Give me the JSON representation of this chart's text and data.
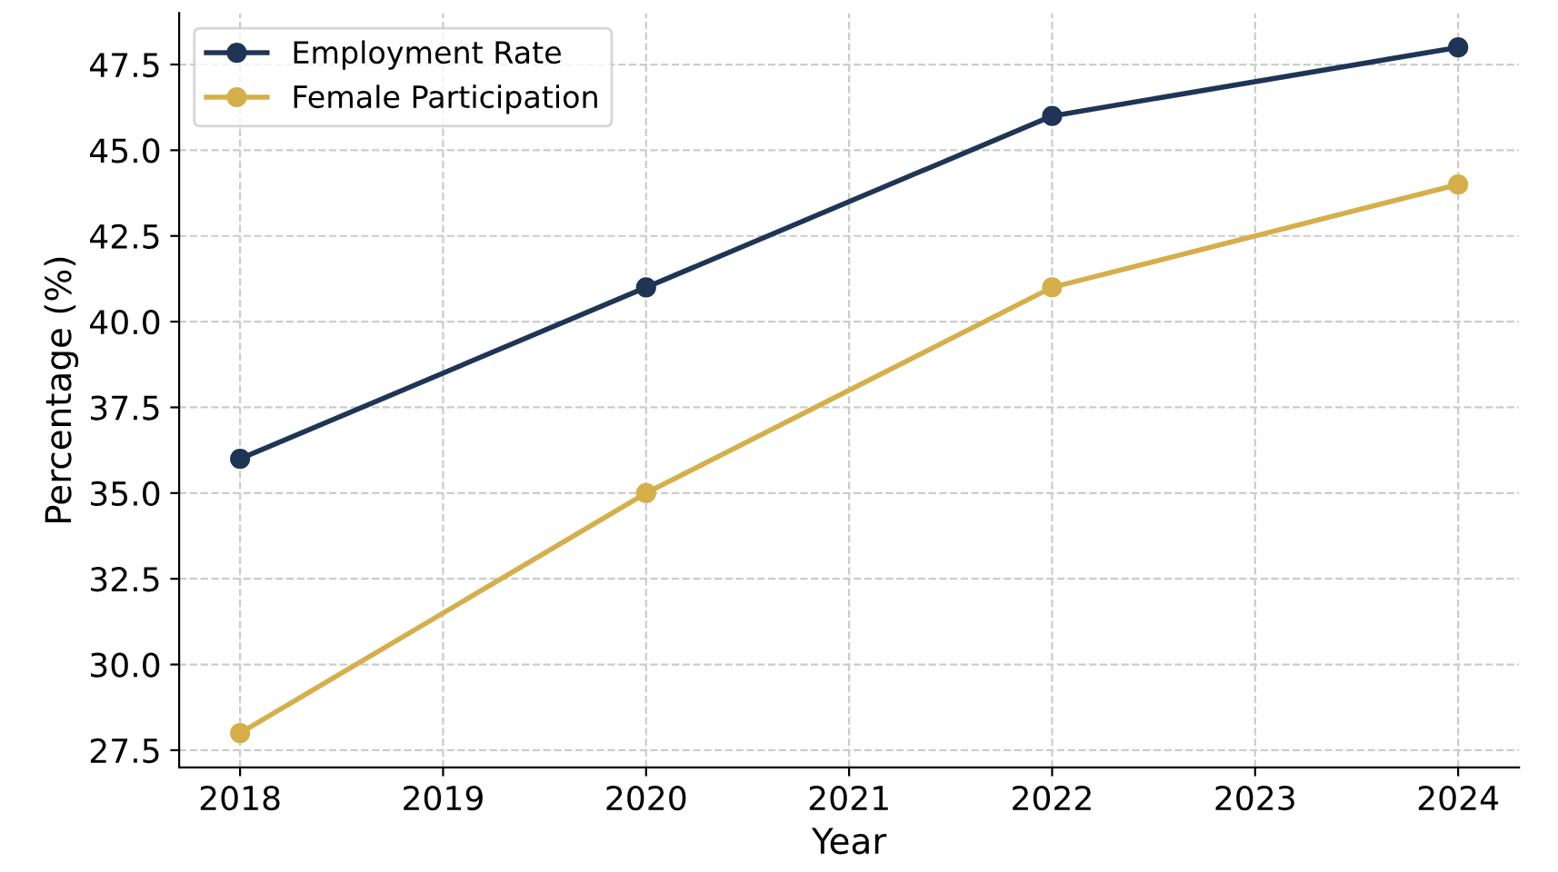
{
  "chart_data": {
    "type": "line",
    "xlabel": "Year",
    "ylabel": "Percentage (%)",
    "x": [
      2018,
      2020,
      2022,
      2024
    ],
    "series": [
      {
        "name": "Employment Rate",
        "color": "#1f3556",
        "values": [
          36,
          41,
          46,
          48
        ]
      },
      {
        "name": "Female Participation",
        "color": "#d4af4a",
        "values": [
          28,
          35,
          41,
          44
        ]
      }
    ],
    "xlim": [
      2017.7,
      2024.3
    ],
    "xticks": [
      2018,
      2019,
      2020,
      2021,
      2022,
      2023,
      2024
    ],
    "ylim": [
      27,
      49
    ],
    "yticks": [
      27.5,
      {
        "value": 30,
        "label": "30.0"
      },
      32.5,
      {
        "value": 35,
        "label": "35.0"
      },
      37.5,
      {
        "value": 40,
        "label": "40.0"
      },
      42.5,
      {
        "value": 45,
        "label": "45.0"
      },
      47.5
    ],
    "grid": true,
    "legend": "top left",
    "marker": "circle",
    "line_style": "solid"
  }
}
